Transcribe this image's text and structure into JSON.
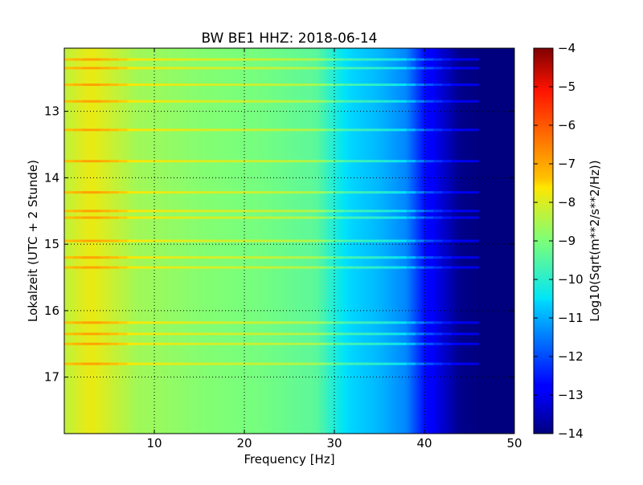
{
  "chart_data": {
    "type": "heatmap",
    "title": "BW BE1 HHZ: 2018-06-14",
    "xlabel": "Frequency [Hz]",
    "ylabel": "Lokalzeit (UTC + 2 Stunde)",
    "xlim": [
      0,
      50
    ],
    "ylim": [
      12.05,
      17.85
    ],
    "y_inverted": true,
    "x_ticks": [
      "10",
      "20",
      "30",
      "40",
      "50"
    ],
    "x_tick_values": [
      10,
      20,
      30,
      40,
      50
    ],
    "y_ticks": [
      "13",
      "14",
      "15",
      "16",
      "17"
    ],
    "y_tick_values": [
      13,
      14,
      15,
      16,
      17
    ],
    "grid": true,
    "colormap": "jet",
    "colorbar": {
      "label": "Log10(Sqrt(m**2/s**2/Hz))",
      "range": [
        -14,
        -4
      ],
      "ticks": [
        "−4",
        "−5",
        "−6",
        "−7",
        "−8",
        "−9",
        "−10",
        "−11",
        "−12",
        "−13",
        "−14"
      ],
      "tick_values": [
        -4,
        -5,
        -6,
        -7,
        -8,
        -9,
        -10,
        -11,
        -12,
        -13,
        -14
      ]
    },
    "spectrum_profile": {
      "frequency_hz": [
        0,
        3,
        8,
        15,
        22,
        28,
        31,
        35,
        38,
        40,
        42,
        44,
        46,
        50
      ],
      "level": [
        -8.3,
        -7.8,
        -8.6,
        -8.9,
        -9.1,
        -9.4,
        -10.5,
        -10.9,
        -11.4,
        -12.6,
        -13.3,
        -13.9,
        -14,
        -14
      ]
    },
    "bright_bands_time": [
      12.22,
      12.35,
      12.6,
      12.85,
      13.28,
      13.75,
      14.22,
      14.5,
      14.6,
      14.95,
      15.2,
      15.35,
      16.18,
      16.35,
      16.5,
      16.8
    ]
  }
}
